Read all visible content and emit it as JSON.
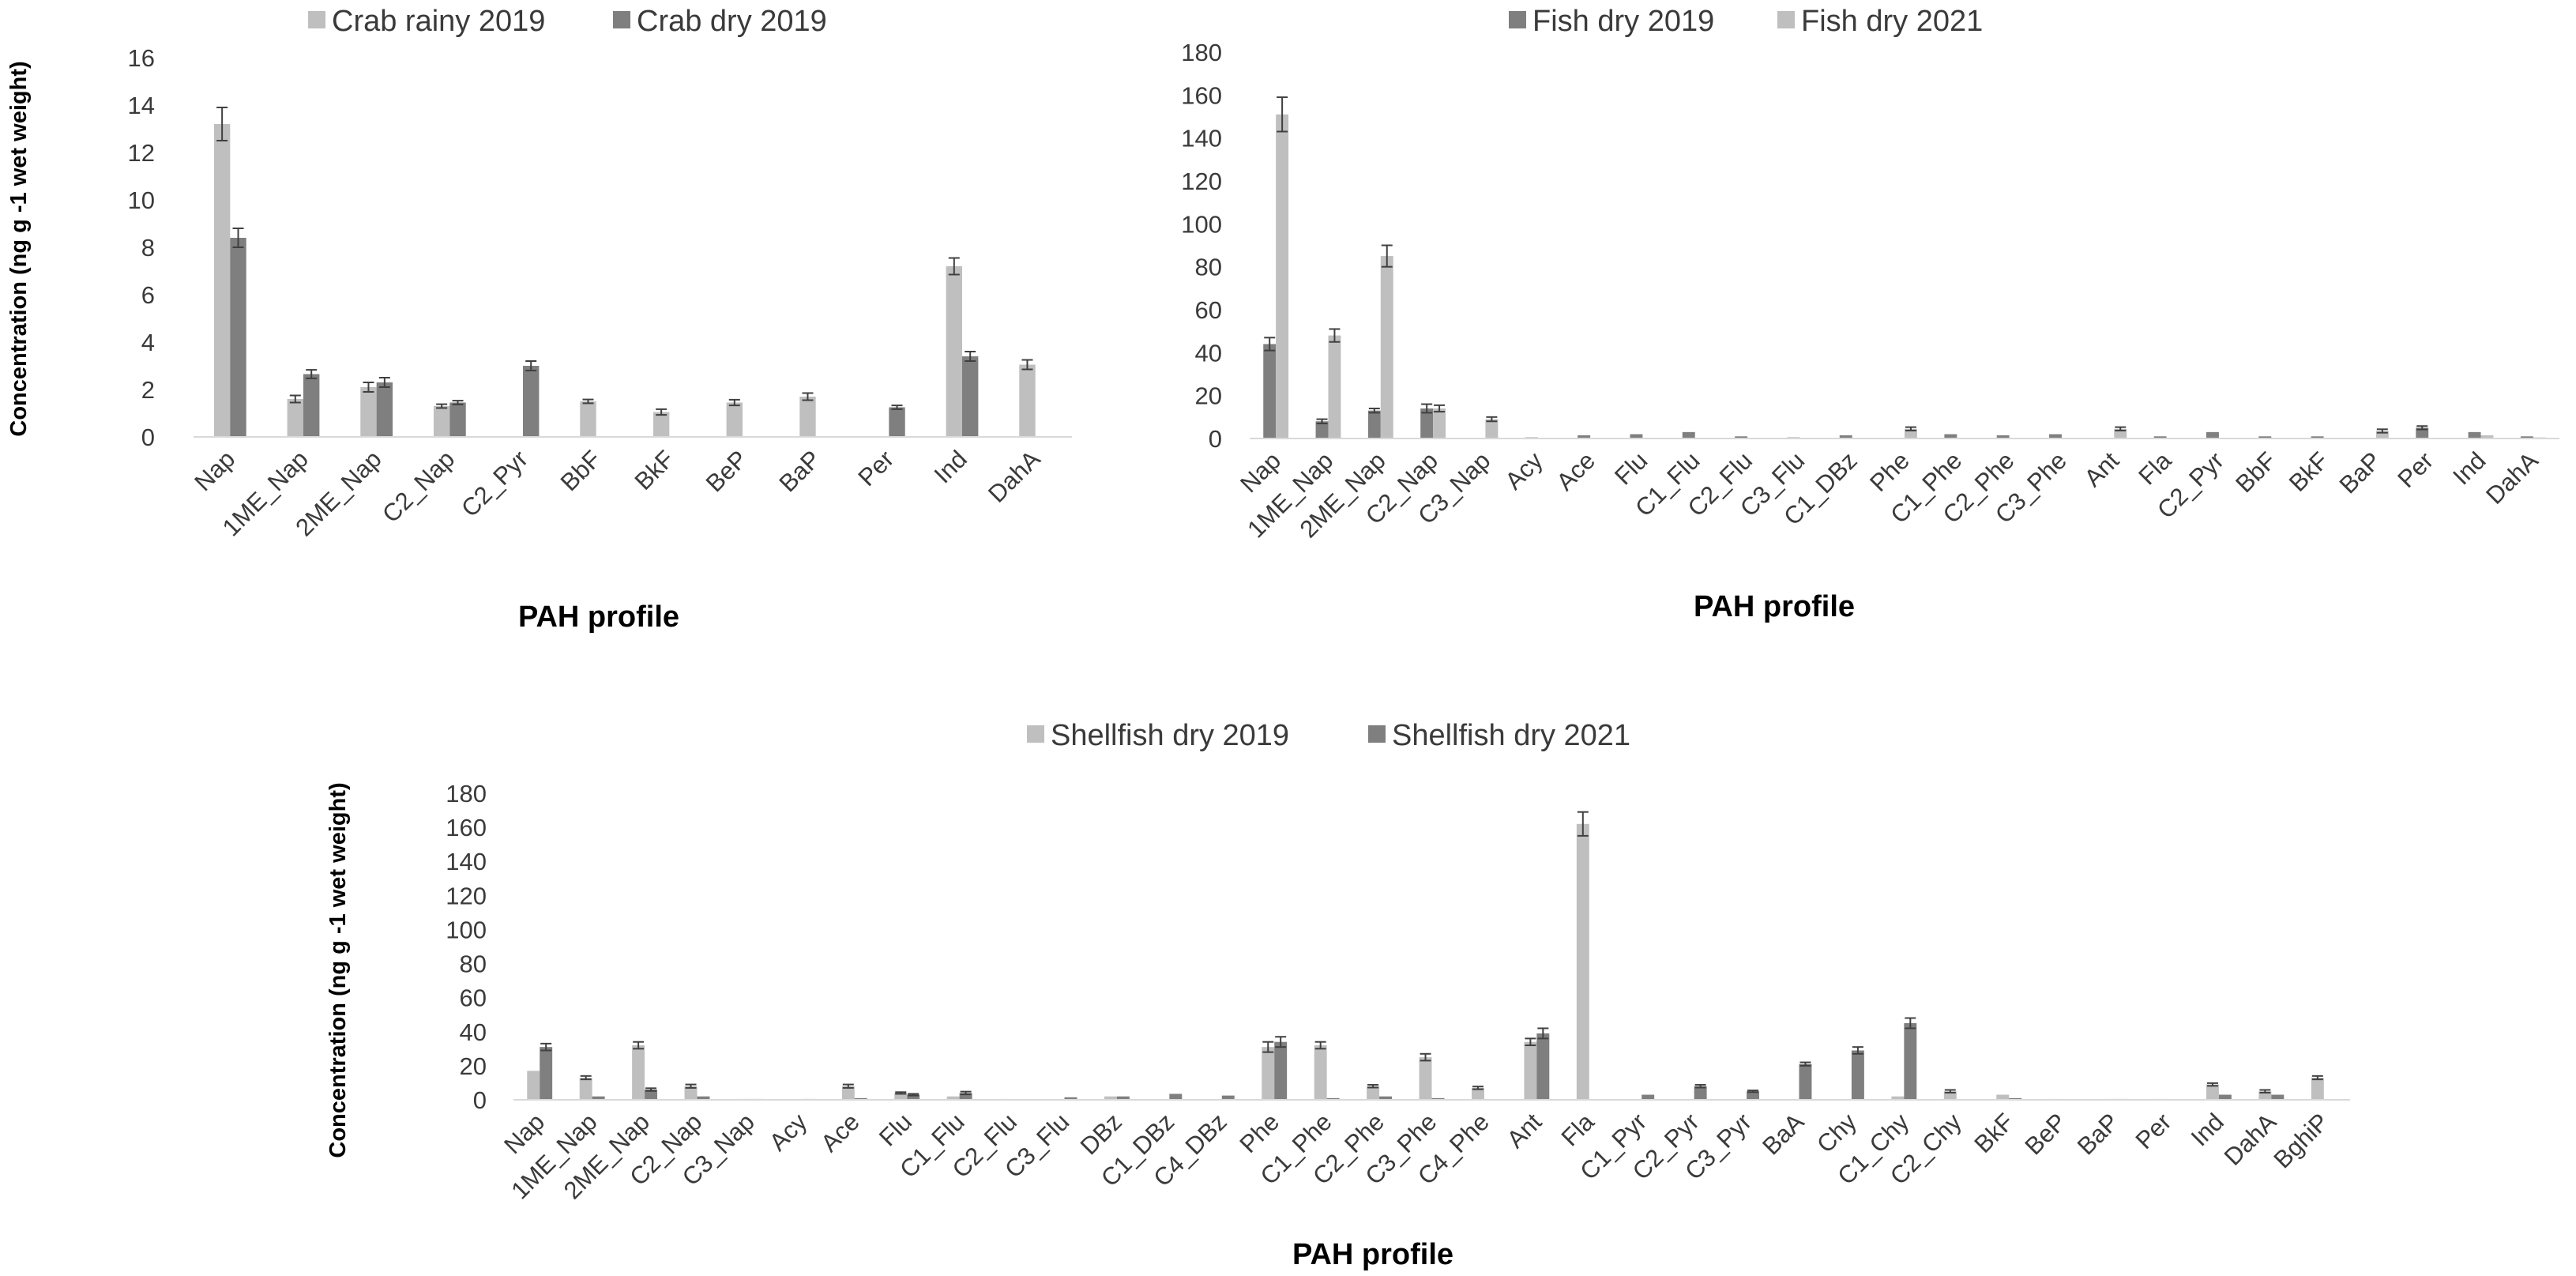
{
  "colors": {
    "light": "#BFBFBF",
    "dark": "#7F7F7F",
    "axis": "#D9D9D9",
    "error": "#404040"
  },
  "chart_data": [
    {
      "id": "crab",
      "type": "bar",
      "title": "",
      "xlabel": "PAH profile",
      "ylabel": "Concentration (ng g -1 wet weight)",
      "ylim": [
        0,
        16
      ],
      "yticks": [
        0,
        2,
        4,
        6,
        8,
        10,
        12,
        14,
        16
      ],
      "legend_position": "top",
      "categories": [
        "Nap",
        "1ME_Nap",
        "2ME_Nap",
        "C2_Nap",
        "C2_Pyr",
        "BbF",
        "BkF",
        "BeP",
        "BaP",
        "Per",
        "Ind",
        "DahA"
      ],
      "series": [
        {
          "name": "Crab rainy 2019",
          "color": "#BFBFBF",
          "values": [
            13.2,
            1.6,
            2.1,
            1.3,
            0,
            1.5,
            1.05,
            1.45,
            1.7,
            0,
            7.2,
            3.05
          ],
          "errors": [
            0.7,
            0.15,
            0.2,
            0.08,
            0,
            0.08,
            0.12,
            0.12,
            0.15,
            0,
            0.35,
            0.2
          ]
        },
        {
          "name": "Crab dry 2019",
          "color": "#7F7F7F",
          "values": [
            8.4,
            2.65,
            2.3,
            1.45,
            3.0,
            0,
            0,
            0,
            0,
            1.25,
            3.4,
            0
          ],
          "errors": [
            0.4,
            0.18,
            0.2,
            0.08,
            0.2,
            0,
            0,
            0,
            0,
            0.08,
            0.2,
            0
          ]
        }
      ]
    },
    {
      "id": "fish",
      "type": "bar",
      "title": "",
      "xlabel": "PAH profile",
      "ylabel": "",
      "ylim": [
        0,
        180
      ],
      "yticks": [
        0,
        20,
        40,
        60,
        80,
        100,
        120,
        140,
        160,
        180
      ],
      "legend_position": "top",
      "categories": [
        "Nap",
        "1ME_Nap",
        "2ME_Nap",
        "C2_Nap",
        "C3_Nap",
        "Acy",
        "Ace",
        "Flu",
        "C1_Flu",
        "C2_Flu",
        "C3_Flu",
        "C1_DBz",
        "Phe",
        "C1_Phe",
        "C2_Phe",
        "C3_Phe",
        "Ant",
        "Fla",
        "C2_Pyr",
        "BbF",
        "BkF",
        "BaP",
        "Per",
        "Ind",
        "DahA"
      ],
      "series": [
        {
          "name": "Fish dry 2019",
          "color": "#7F7F7F",
          "values": [
            44,
            8,
            13,
            14,
            0,
            0.5,
            1.5,
            2,
            3,
            1,
            0.5,
            1.5,
            0,
            2,
            1.5,
            2,
            0,
            1,
            3,
            1,
            1,
            0,
            5,
            3,
            1
          ],
          "errors": [
            3,
            1,
            1,
            2,
            0,
            0,
            0,
            0,
            0,
            0,
            0,
            0,
            0,
            0,
            0,
            0,
            0,
            0,
            0,
            0,
            0,
            0,
            0.8,
            0,
            0
          ]
        },
        {
          "name": "Fish dry 2021",
          "color": "#BFBFBF",
          "values": [
            151,
            48,
            85,
            14,
            9,
            0,
            0,
            0,
            0,
            0,
            0,
            0,
            4.5,
            0,
            0,
            0,
            4.5,
            0,
            0,
            0,
            0,
            3.5,
            0,
            1.5,
            0.5
          ],
          "errors": [
            8,
            3,
            5,
            1.5,
            1,
            0,
            0,
            0,
            0,
            0,
            0,
            0,
            0.8,
            0,
            0,
            0,
            0.8,
            0,
            0,
            0,
            0,
            0.8,
            0,
            0,
            0
          ]
        }
      ]
    },
    {
      "id": "shellfish",
      "type": "bar",
      "title": "",
      "xlabel": "PAH profile",
      "ylabel": "Concentration (ng g -1 wet weight)",
      "ylim": [
        0,
        180
      ],
      "yticks": [
        0,
        20,
        40,
        60,
        80,
        100,
        120,
        140,
        160,
        180
      ],
      "legend_position": "top",
      "categories": [
        "Nap",
        "1ME_Nap",
        "2ME_Nap",
        "C2_Nap",
        "C3_Nap",
        "Acy",
        "Ace",
        "Flu",
        "C1_Flu",
        "C2_Flu",
        "C3_Flu",
        "DBz",
        "C1_DBz",
        "C4_DBz",
        "Phe",
        "C1_Phe",
        "C2_Phe",
        "C3_Phe",
        "C4_Phe",
        "Ant",
        "Fla",
        "C1_Pyr",
        "C2_Pyr",
        "C3_Pyr",
        "BaA",
        "Chy",
        "C1_Chy",
        "C2_Chy",
        "BkF",
        "BeP",
        "BaP",
        "Per",
        "Ind",
        "DahA",
        "BghiP"
      ],
      "series": [
        {
          "name": "Shellfish dry 2019",
          "color": "#BFBFBF",
          "values": [
            17,
            13,
            32,
            8,
            0.5,
            0,
            8,
            4,
            2,
            0.5,
            0,
            2,
            0,
            0,
            31,
            32,
            8,
            25,
            7,
            34,
            162,
            0,
            0,
            0,
            0,
            0,
            2,
            5,
            3,
            0.5,
            0.5,
            0.5,
            9,
            5,
            13
          ],
          "errors": [
            0,
            1,
            2,
            1,
            0,
            0,
            1,
            0.5,
            0,
            0,
            0,
            0,
            0,
            0,
            3,
            2,
            0.8,
            2,
            0.8,
            2,
            7,
            0,
            0,
            0,
            0,
            0,
            0,
            0.8,
            0,
            0,
            0,
            0,
            0.8,
            0.8,
            1
          ]
        },
        {
          "name": "Shellfish dry 2021",
          "color": "#7F7F7F",
          "values": [
            31,
            2,
            6,
            2,
            0.5,
            0.5,
            1,
            3,
            4,
            0,
            1.5,
            2,
            3.5,
            2.5,
            34,
            1,
            2,
            1,
            0,
            39,
            0,
            3,
            8,
            5,
            21,
            29,
            45,
            0,
            1,
            0,
            0.5,
            0,
            3,
            3,
            0
          ],
          "errors": [
            2,
            0,
            0.8,
            0,
            0,
            0,
            0,
            0.5,
            0.8,
            0,
            0,
            0,
            0,
            0,
            3,
            0,
            0,
            0,
            0,
            3,
            0,
            0,
            0.8,
            0.5,
            1,
            2,
            3,
            0,
            0,
            0,
            0,
            0,
            0,
            0,
            0
          ]
        }
      ]
    }
  ]
}
